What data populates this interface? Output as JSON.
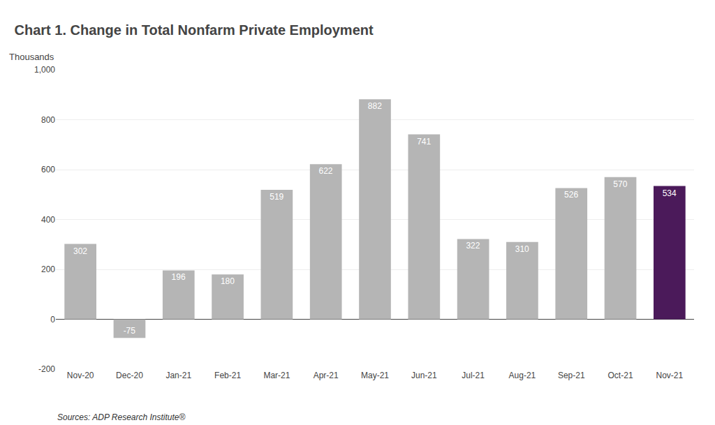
{
  "chart_data": {
    "type": "bar",
    "title": "Chart 1. Change in Total Nonfarm Private Employment",
    "ylabel": "Thousands",
    "annotations": [
      "Sources: ADP Research Institute®"
    ],
    "categories": [
      "Nov-20",
      "Dec-20",
      "Jan-21",
      "Feb-21",
      "Mar-21",
      "Apr-21",
      "May-21",
      "Jun-21",
      "Jul-21",
      "Aug-21",
      "Sep-21",
      "Oct-21",
      "Nov-21"
    ],
    "values": [
      302,
      -75,
      196,
      180,
      519,
      622,
      882,
      741,
      322,
      310,
      526,
      570,
      534
    ],
    "colors": [
      "#b5b5b5",
      "#b5b5b5",
      "#b5b5b5",
      "#b5b5b5",
      "#b5b5b5",
      "#b5b5b5",
      "#b5b5b5",
      "#b5b5b5",
      "#b5b5b5",
      "#b5b5b5",
      "#b5b5b5",
      "#b5b5b5",
      "#4b1a5a"
    ],
    "ylim": [
      -200,
      1000
    ],
    "yticks": [
      -200,
      0,
      200,
      400,
      600,
      800,
      {
        "value": 1000,
        "label": "1,000"
      }
    ],
    "grid": true,
    "data_labels": true
  }
}
